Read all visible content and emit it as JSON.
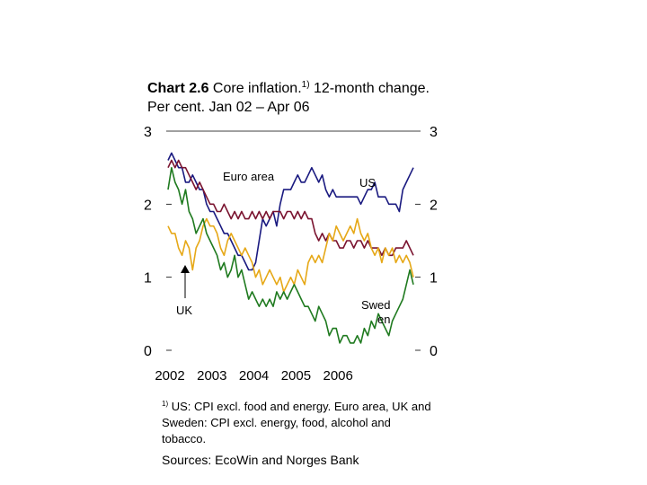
{
  "title": {
    "bold": "Chart 2.6",
    "text": " Core inflation.",
    "sup": "1)",
    "text2": " 12-month change.",
    "line2": "Per cent. Jan 02 – Apr 06"
  },
  "footnote": {
    "marker": "1)",
    "text": " US: CPI excl. food and energy. Euro area, UK and Sweden: CPI excl. energy, food, alcohol and tobacco."
  },
  "sources": "Sources: EcoWin and Norges Bank",
  "colors": {
    "US": "#1a1a80",
    "Euro area": "#7a1430",
    "UK": "#e6a817",
    "Sweden": "#1f7a1f"
  },
  "chart_data": {
    "type": "line",
    "ylim": [
      0,
      3
    ],
    "yticks": [
      0,
      1,
      2,
      3
    ],
    "y_tick_labels_left": [
      "0",
      "1",
      "2",
      "3"
    ],
    "y_tick_labels_right": [
      "0",
      "1",
      "2",
      "3"
    ],
    "x_start": "2002-01",
    "x_end": "2006-04",
    "x_tick_labels": [
      "2002",
      "2003",
      "2004",
      "2005",
      "2006"
    ],
    "grid": false,
    "annotations": [
      {
        "text": "Euro area",
        "series": "Euro area"
      },
      {
        "text": "US",
        "series": "US"
      },
      {
        "text": "UK",
        "series": "UK",
        "arrow": true
      },
      {
        "text": "Swed\nen",
        "series": "Sweden"
      }
    ],
    "series": [
      {
        "name": "US",
        "values": [
          2.6,
          2.7,
          2.6,
          2.5,
          2.5,
          2.3,
          2.3,
          2.4,
          2.3,
          2.2,
          2.2,
          2.0,
          1.9,
          1.9,
          1.8,
          1.7,
          1.6,
          1.6,
          1.5,
          1.4,
          1.3,
          1.3,
          1.2,
          1.1,
          1.1,
          1.2,
          1.5,
          1.8,
          1.7,
          1.8,
          1.9,
          1.7,
          2.0,
          2.2,
          2.2,
          2.2,
          2.3,
          2.4,
          2.3,
          2.3,
          2.4,
          2.5,
          2.4,
          2.3,
          2.4,
          2.2,
          2.1,
          2.2,
          2.1,
          2.1,
          2.1,
          2.1,
          2.1,
          2.1,
          2.1,
          2.0,
          2.1,
          2.2,
          2.2,
          2.3,
          2.1,
          2.1,
          2.1,
          2.0,
          2.0,
          2.0,
          1.9,
          2.2,
          2.3,
          2.4,
          2.5
        ]
      },
      {
        "name": "Euro area",
        "values": [
          2.5,
          2.6,
          2.5,
          2.6,
          2.5,
          2.5,
          2.4,
          2.3,
          2.2,
          2.3,
          2.2,
          2.1,
          2.0,
          2.0,
          1.9,
          1.9,
          2.0,
          1.9,
          1.8,
          1.9,
          1.8,
          1.9,
          1.8,
          1.8,
          1.9,
          1.8,
          1.9,
          1.8,
          1.9,
          1.8,
          1.9,
          1.9,
          1.9,
          1.8,
          1.9,
          1.9,
          1.8,
          1.9,
          1.8,
          1.9,
          1.8,
          1.8,
          1.6,
          1.5,
          1.6,
          1.5,
          1.6,
          1.5,
          1.5,
          1.4,
          1.4,
          1.5,
          1.5,
          1.4,
          1.5,
          1.5,
          1.4,
          1.5,
          1.4,
          1.4,
          1.4,
          1.3,
          1.4,
          1.3,
          1.3,
          1.4,
          1.4,
          1.4,
          1.5,
          1.4,
          1.3
        ]
      },
      {
        "name": "UK",
        "values": [
          1.7,
          1.6,
          1.6,
          1.4,
          1.3,
          1.5,
          1.4,
          1.1,
          1.4,
          1.5,
          1.7,
          1.8,
          1.7,
          1.7,
          1.6,
          1.4,
          1.3,
          1.5,
          1.6,
          1.5,
          1.4,
          1.3,
          1.4,
          1.3,
          1.2,
          1.0,
          1.1,
          0.9,
          1.0,
          1.1,
          1.0,
          0.9,
          1.0,
          0.8,
          0.9,
          1.0,
          0.9,
          1.1,
          1.0,
          0.9,
          1.2,
          1.3,
          1.2,
          1.3,
          1.2,
          1.4,
          1.6,
          1.5,
          1.7,
          1.6,
          1.5,
          1.6,
          1.7,
          1.6,
          1.8,
          1.6,
          1.5,
          1.6,
          1.4,
          1.3,
          1.4,
          1.2,
          1.4,
          1.3,
          1.4,
          1.2,
          1.3,
          1.2,
          1.3,
          1.2,
          1.0
        ]
      },
      {
        "name": "Sweden",
        "values": [
          2.2,
          2.5,
          2.3,
          2.2,
          2.0,
          2.2,
          1.9,
          1.8,
          1.6,
          1.7,
          1.8,
          1.6,
          1.5,
          1.4,
          1.3,
          1.1,
          1.2,
          1.0,
          1.1,
          1.3,
          1.0,
          1.1,
          0.9,
          0.7,
          0.8,
          0.7,
          0.6,
          0.7,
          0.6,
          0.7,
          0.6,
          0.8,
          0.7,
          0.8,
          0.7,
          0.8,
          0.9,
          0.8,
          0.7,
          0.6,
          0.6,
          0.5,
          0.4,
          0.6,
          0.5,
          0.4,
          0.2,
          0.3,
          0.3,
          0.1,
          0.2,
          0.2,
          0.1,
          0.1,
          0.2,
          0.1,
          0.3,
          0.2,
          0.4,
          0.3,
          0.5,
          0.4,
          0.3,
          0.2,
          0.4,
          0.5,
          0.6,
          0.7,
          0.9,
          1.1,
          0.9
        ]
      }
    ]
  }
}
